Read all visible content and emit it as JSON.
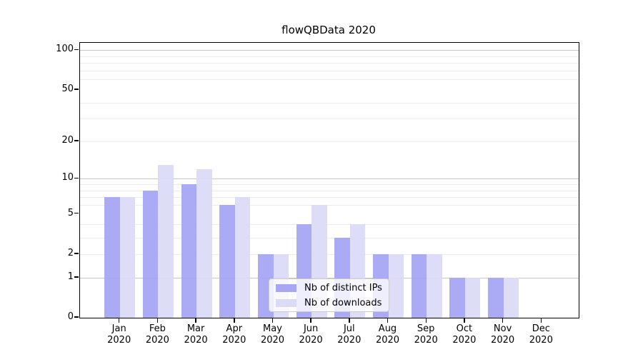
{
  "chart_data": {
    "type": "bar",
    "title": "flowQBData 2020",
    "categories": [
      "Jan",
      "Feb",
      "Mar",
      "Apr",
      "May",
      "Jun",
      "Jul",
      "Aug",
      "Sep",
      "Oct",
      "Nov",
      "Dec"
    ],
    "xtick_year": "2020",
    "series": [
      {
        "name": "Nb of distinct IPs",
        "color": "#a7a7f4",
        "values": [
          7,
          8,
          9,
          6,
          2,
          4,
          3,
          2,
          2,
          1,
          1,
          0
        ]
      },
      {
        "name": "Nb of downloads",
        "color": "#dbdbf8",
        "values": [
          7,
          13,
          12,
          7,
          2,
          6,
          4,
          2,
          2,
          1,
          1,
          0
        ]
      }
    ],
    "yticks": [
      0,
      1,
      2,
      5,
      10,
      20,
      50,
      100
    ],
    "major_gridlines": [
      1,
      10,
      100
    ],
    "minor_gridlines": [
      2,
      3,
      4,
      6,
      7,
      8,
      9,
      20,
      30,
      40,
      60,
      70,
      80,
      90
    ],
    "yscale": "log(1+v)",
    "ylim": [
      0,
      115
    ],
    "grid": "horizontal",
    "legend_position": "lower center inside plot",
    "colors": {
      "major_grid": "#c6c6c6",
      "minor_grid": "#ececec",
      "axis": "#000000",
      "background": "#ffffff",
      "legend_border": "#cccccc"
    }
  }
}
